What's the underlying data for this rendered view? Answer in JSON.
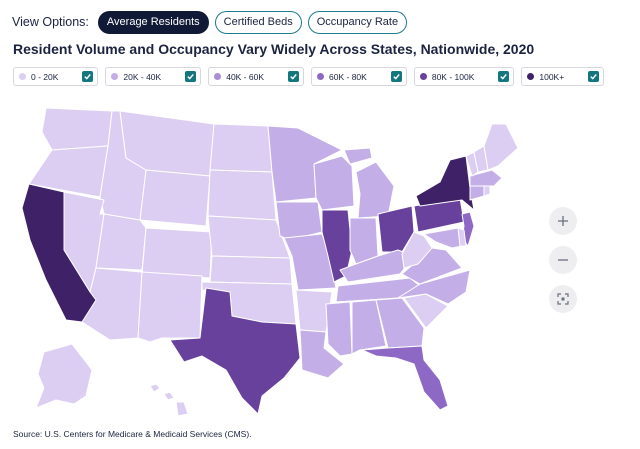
{
  "view_options": {
    "label": "View Options:",
    "tabs": [
      {
        "label": "Average Residents",
        "active": true
      },
      {
        "label": "Certified Beds",
        "active": false
      },
      {
        "label": "Occupancy Rate",
        "active": false
      }
    ]
  },
  "title": "Resident Volume and Occupancy Vary Widely Across States, Nationwide, 2020",
  "legend": [
    {
      "label": "0 - 20K",
      "color": "#dccef2",
      "checked": true
    },
    {
      "label": "20K - 40K",
      "color": "#c4aee8",
      "checked": true
    },
    {
      "label": "40K - 60K",
      "color": "#ab8cd8",
      "checked": true
    },
    {
      "label": "60K - 80K",
      "color": "#8d68c4",
      "checked": true
    },
    {
      "label": "80K - 100K",
      "color": "#67419c",
      "checked": true
    },
    {
      "label": "100K+",
      "color": "#3f2167",
      "checked": true
    }
  ],
  "colors": {
    "accent": "#14777f",
    "active_pill": "#101a37",
    "state_border": "#ffffff"
  },
  "map_tiers": {
    "washington": 0,
    "oregon": 0,
    "idaho": 0,
    "montana": 0,
    "wyoming": 0,
    "nevada": 0,
    "utah": 0,
    "colorado": 0,
    "arizona": 0,
    "new-mexico": 0,
    "north-dakota": 0,
    "south-dakota": 0,
    "nebraska": 0,
    "kansas": 0,
    "oklahoma": 0,
    "arkansas": 0,
    "mississippi": 1,
    "alabama": 1,
    "louisiana": 1,
    "georgia": 1,
    "tennessee": 1,
    "kentucky": 1,
    "south-carolina": 0,
    "north-carolina": 1,
    "virginia": 1,
    "west-virginia": 0,
    "maryland": 1,
    "delaware": 0,
    "new-jersey": 3,
    "connecticut": 1,
    "rhode-island": 0,
    "massachusetts": 1,
    "vermont": 0,
    "new-hampshire": 0,
    "maine": 0,
    "minnesota": 1,
    "iowa": 1,
    "missouri": 1,
    "wisconsin": 1,
    "michigan": 1,
    "indiana": 1,
    "illinois": 4,
    "ohio": 4,
    "pennsylvania": 4,
    "new-york": 5,
    "texas": 4,
    "california": 5,
    "florida": 3,
    "alaska": 0,
    "hawaii": 0
  },
  "zoom_controls": [
    "zoom-in-icon",
    "zoom-out-icon",
    "fullscreen-icon"
  ],
  "source": "Source: U.S. Centers for Medicare & Medicaid Services (CMS)."
}
